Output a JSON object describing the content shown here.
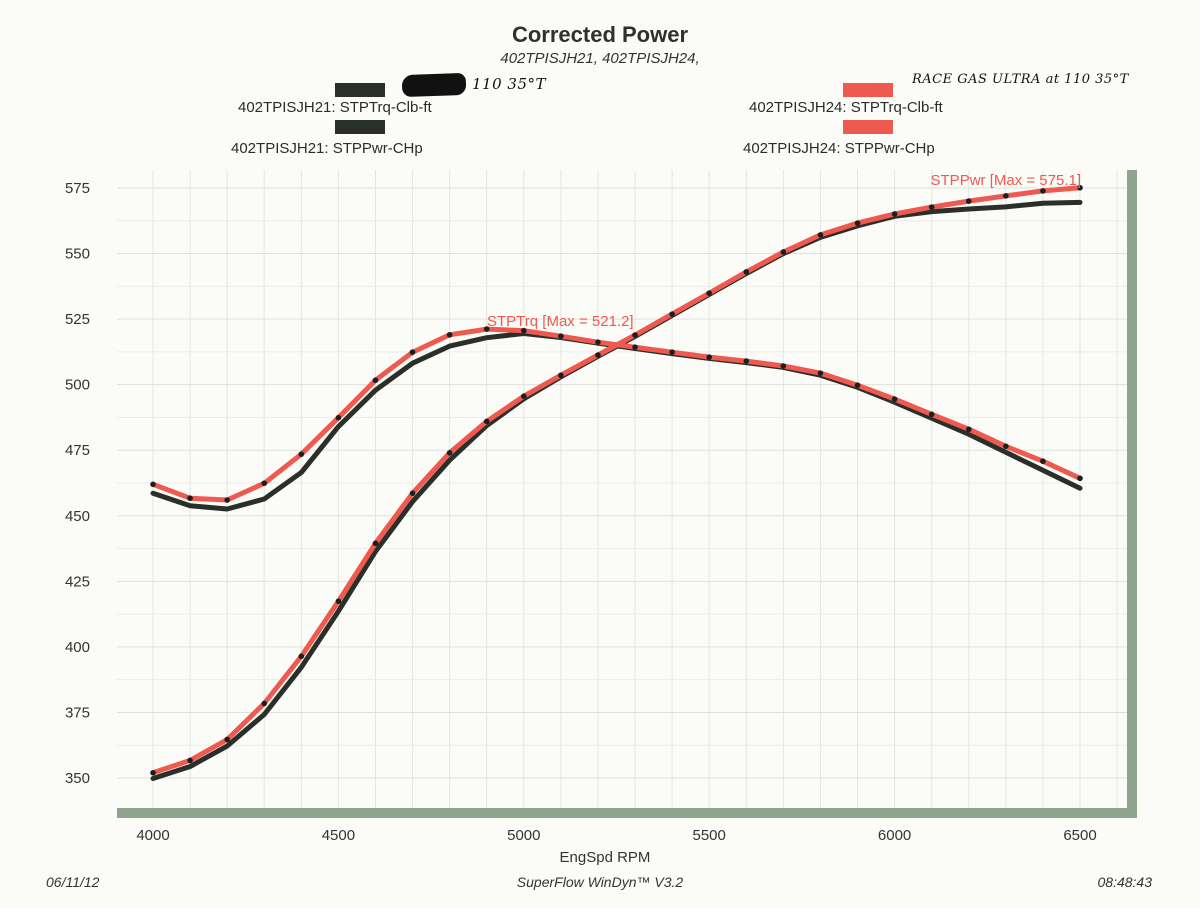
{
  "header": {
    "title": "Corrected Power",
    "subtitle": "402TPISJH21, 402TPISJH24,"
  },
  "annotations": {
    "left_note_redacted": true,
    "left_note": "110 35°T",
    "right_note": "RACE GAS ULTRA at 110 35°T"
  },
  "legend": [
    {
      "label": "402TPISJH21: STPTrq-Clb-ft",
      "color": "#2a2f2a",
      "position": "top-left"
    },
    {
      "label": "402TPISJH21: STPPwr-CHp",
      "color": "#2a2f2a",
      "position": "left"
    },
    {
      "label": "402TPISJH24: STPTrq-Clb-ft",
      "color": "#ee5a50",
      "position": "top-right"
    },
    {
      "label": "402TPISJH24: STPPwr-CHp",
      "color": "#ee5a50",
      "position": "right"
    }
  ],
  "footer": {
    "date": "06/11/12",
    "software": "SuperFlow WinDyn™ V3.2",
    "time": "08:48:43"
  },
  "chart_data": {
    "type": "line",
    "title": "Corrected Power",
    "subtitle": "402TPISJH21, 402TPISJH24,",
    "xlabel": "EngSpd RPM",
    "ylabel": "",
    "xlim": [
      3950,
      6650
    ],
    "ylim": [
      344,
      578
    ],
    "xticks": [
      4000,
      4500,
      5000,
      5500,
      6000,
      6500
    ],
    "yticks": [
      350,
      375,
      400,
      425,
      450,
      475,
      500,
      525,
      550,
      575
    ],
    "grid": true,
    "legend_placement": "top",
    "x": [
      4000,
      4100,
      4200,
      4300,
      4400,
      4500,
      4600,
      4700,
      4800,
      4900,
      5000,
      5100,
      5200,
      5300,
      5400,
      5500,
      5600,
      5700,
      5800,
      5900,
      6000,
      6100,
      6200,
      6300,
      6400,
      6500
    ],
    "series": [
      {
        "name": "402TPISJH21: STPTrq-Clb-ft",
        "color": "#2a2f2a",
        "values": [
          458.6,
          453.8,
          452.6,
          456.4,
          466.5,
          484.0,
          497.9,
          508.2,
          514.7,
          517.9,
          519.5,
          518.0,
          515.8,
          513.8,
          511.8,
          510.0,
          508.4,
          506.6,
          503.6,
          499.0,
          493.3,
          487.2,
          481.1,
          474.2,
          467.4,
          460.5
        ]
      },
      {
        "name": "402TPISJH21: STPPwr-CHp",
        "color": "#2a2f2a",
        "values": [
          349.8,
          354.4,
          362.2,
          374.2,
          392.2,
          413.6,
          436.4,
          455.4,
          471.2,
          484.4,
          494.6,
          503.0,
          510.8,
          518.4,
          526.4,
          534.4,
          542.4,
          550.0,
          556.2,
          560.6,
          564.2,
          566.0,
          567.0,
          567.8,
          569.2,
          569.5
        ]
      },
      {
        "name": "402TPISJH24: STPTrq-Clb-ft",
        "color": "#ee5a50",
        "values": [
          462.0,
          456.7,
          456.0,
          462.4,
          473.5,
          487.4,
          501.7,
          512.4,
          519.0,
          521.2,
          520.6,
          518.5,
          516.2,
          514.3,
          512.4,
          510.5,
          509.0,
          507.1,
          504.4,
          499.8,
          494.5,
          488.7,
          483.0,
          476.5,
          470.8,
          464.3
        ]
      },
      {
        "name": "402TPISJH24: STPPwr-CHp",
        "color": "#ee5a50",
        "values": [
          352.0,
          356.7,
          364.7,
          378.4,
          396.4,
          417.4,
          439.5,
          458.6,
          474.0,
          486.0,
          495.6,
          503.6,
          511.3,
          518.9,
          526.9,
          534.9,
          543.0,
          550.6,
          557.1,
          561.6,
          565.1,
          567.7,
          570.0,
          572.0,
          573.9,
          575.1
        ]
      }
    ],
    "annotations": [
      {
        "text": "STPTrq [Max = 521.2]",
        "color": "#ee5a50",
        "x": 4900,
        "y": 521.2
      },
      {
        "text": "STPPwr [Max = 575.1]",
        "color": "#ee5a50",
        "x": 6500,
        "y": 575.1
      }
    ]
  }
}
